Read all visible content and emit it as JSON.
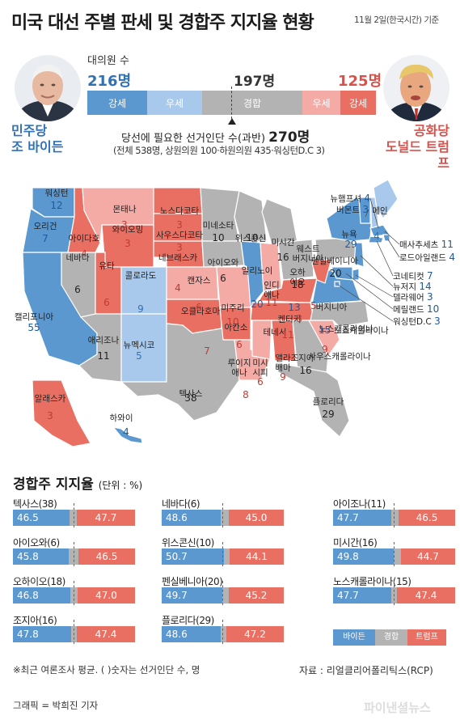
{
  "title": "미국 대선 주별 판세 및 경합주 지지율 현황",
  "date": "11월 2일(한국시간) 기준",
  "colors": {
    "dem_strong": "#5b98d0",
    "dem_lean": "#a9c9ec",
    "tossup": "#b3b3b3",
    "rep_lean": "#f4aaa5",
    "rep_strong": "#e96f63"
  },
  "summary": {
    "elector_label": "대의원 수",
    "dem_total": "216명",
    "tossup_total": "197명",
    "rep_total": "125명",
    "segments": [
      "강세",
      "우세",
      "경합",
      "우세",
      "강세"
    ],
    "needed_prefix": "당선에 필요한 선거인단 수(과반)",
    "needed_value": "270명",
    "needed_detail": "(전체 538명, 상원의원 100·하원의원 435·워싱턴D.C 3)",
    "dem_party": "민주당",
    "dem_candidate": "조 바이든",
    "rep_party": "공화당",
    "rep_candidate": "도널드 트럼프"
  },
  "map_states": [
    {
      "name": "워싱턴",
      "ev": "12",
      "rating": "dem_strong"
    },
    {
      "name": "오리건",
      "ev": "7",
      "rating": "dem_strong"
    },
    {
      "name": "캘리포니아",
      "ev": "55",
      "rating": "dem_strong"
    },
    {
      "name": "네바다",
      "ev": "6",
      "rating": "tossup"
    },
    {
      "name": "아이다호",
      "ev": "4",
      "rating": "rep_strong"
    },
    {
      "name": "몬태나",
      "ev": "3",
      "rating": "rep_lean"
    },
    {
      "name": "와이오밍",
      "ev": "3",
      "rating": "rep_strong"
    },
    {
      "name": "유타",
      "ev": "6",
      "rating": "rep_strong"
    },
    {
      "name": "애리조나",
      "ev": "11",
      "rating": "tossup"
    },
    {
      "name": "콜로라도",
      "ev": "9",
      "rating": "dem_lean"
    },
    {
      "name": "뉴멕시코",
      "ev": "5",
      "rating": "dem_lean"
    },
    {
      "name": "노스다코타",
      "ev": "3",
      "rating": "rep_strong"
    },
    {
      "name": "사우스다코타",
      "ev": "3",
      "rating": "rep_strong"
    },
    {
      "name": "네브래스카",
      "ev": "4",
      "rating": "rep_strong"
    },
    {
      "name": "캔자스",
      "ev": "6",
      "rating": "rep_lean"
    },
    {
      "name": "오클라호마",
      "ev": "7",
      "rating": "rep_strong"
    },
    {
      "name": "텍사스",
      "ev": "38",
      "rating": "tossup"
    },
    {
      "name": "미네소타",
      "ev": "10",
      "rating": "tossup"
    },
    {
      "name": "아이오와",
      "ev": "6",
      "rating": "tossup"
    },
    {
      "name": "미주리",
      "ev": "10",
      "rating": "rep_lean"
    },
    {
      "name": "아칸소",
      "ev": "6",
      "rating": "rep_strong"
    },
    {
      "name": "루이지애나",
      "ev": "8",
      "rating": "rep_lean"
    },
    {
      "name": "위스콘신",
      "ev": "10",
      "rating": "tossup"
    },
    {
      "name": "일리노이",
      "ev": "20",
      "rating": "dem_strong"
    },
    {
      "name": "미시간",
      "ev": "16",
      "rating": "tossup"
    },
    {
      "name": "인디애나",
      "ev": "11",
      "rating": "rep_lean"
    },
    {
      "name": "오하이오",
      "ev": "18",
      "rating": "tossup"
    },
    {
      "name": "켄터키",
      "ev": "8",
      "rating": "rep_strong"
    },
    {
      "name": "테네시",
      "ev": "11",
      "rating": "rep_strong"
    },
    {
      "name": "미시시피",
      "ev": "6",
      "rating": "rep_lean"
    },
    {
      "name": "앨라배마",
      "ev": "9",
      "rating": "rep_strong"
    },
    {
      "name": "조지아",
      "ev": "16",
      "rating": "tossup"
    },
    {
      "name": "플로리다",
      "ev": "29",
      "rating": "tossup"
    },
    {
      "name": "사우스캐롤라이나",
      "ev": "9",
      "rating": "rep_lean"
    },
    {
      "name": "노스캐롤라이나",
      "ev": "15",
      "rating": "tossup"
    },
    {
      "name": "버지니아",
      "ev": "13",
      "rating": "dem_strong"
    },
    {
      "name": "웨스트버지니아",
      "ev": "5",
      "rating": "rep_strong"
    },
    {
      "name": "펜실베이니아",
      "ev": "20",
      "rating": "tossup"
    },
    {
      "name": "뉴욕",
      "ev": "29",
      "rating": "dem_strong"
    },
    {
      "name": "뉴햄프셔",
      "ev": "4",
      "rating": "dem_lean"
    },
    {
      "name": "버몬트",
      "ev": "3",
      "rating": "dem_strong"
    },
    {
      "name": "메인",
      "ev": "4",
      "rating": "dem_lean"
    },
    {
      "name": "매사추세츠",
      "ev": "11",
      "rating": "dem_strong"
    },
    {
      "name": "로드아일랜드",
      "ev": "4",
      "rating": "dem_strong"
    },
    {
      "name": "코네티컷",
      "ev": "7",
      "rating": "dem_strong"
    },
    {
      "name": "뉴저지",
      "ev": "14",
      "rating": "dem_strong"
    },
    {
      "name": "델라웨어",
      "ev": "3",
      "rating": "dem_strong"
    },
    {
      "name": "메릴랜드",
      "ev": "10",
      "rating": "dem_strong"
    },
    {
      "name": "워싱턴D.C",
      "ev": "3",
      "rating": "dem_strong"
    },
    {
      "name": "알래스카",
      "ev": "3",
      "rating": "rep_strong"
    },
    {
      "name": "하와이",
      "ev": "4",
      "rating": "dem_strong"
    }
  ],
  "poll_title": "경합주 지지율",
  "poll_unit": "(단위 : %)",
  "chart_data": {
    "type": "bar",
    "title": "경합주 지지율",
    "unit": "%",
    "series_names": [
      "바이든",
      "트럼프"
    ],
    "categories": [
      "텍사스(38)",
      "네바다(6)",
      "아이조나(11)",
      "아이오와(6)",
      "위스콘신(10)",
      "미시간(16)",
      "오하이오(18)",
      "펜실베니아(20)",
      "노스캐롤라이나(15)",
      "조지아(16)",
      "플로리다(29)"
    ],
    "series": [
      {
        "name": "바이든",
        "values": [
          46.5,
          48.6,
          47.7,
          45.8,
          50.7,
          49.8,
          46.8,
          49.7,
          47.7,
          47.8,
          48.6
        ]
      },
      {
        "name": "트럼프",
        "values": [
          47.7,
          45.0,
          46.5,
          46.5,
          44.1,
          44.7,
          47.0,
          45.2,
          47.4,
          47.4,
          47.2
        ]
      }
    ],
    "value_labels": {
      "바이든": [
        "46.5",
        "48.6",
        "47.7",
        "45.8",
        "50.7",
        "49.8",
        "46.8",
        "49.7",
        "47.7",
        "47.8",
        "48.6"
      ],
      "트럼프": [
        "47.7",
        "45.0",
        "46.5",
        "46.5",
        "44.1",
        "44.7",
        "47.0",
        "45.2",
        "47.4",
        "47.4",
        "47.2"
      ]
    },
    "legend": [
      "바이든",
      "경합",
      "트럼프"
    ],
    "colors": {
      "biden": "#5b98d0",
      "undecided": "#b3b3b3",
      "trump": "#e96f63"
    }
  },
  "footnote": "※최근 여론조사 평균. ( )숫자는 선거인단 수, 명",
  "source": "자료 : 리얼클리어폴리틱스(RCP)",
  "credit": "그래픽 = 박희진 기자",
  "watermark": "파이낸셜뉴스"
}
